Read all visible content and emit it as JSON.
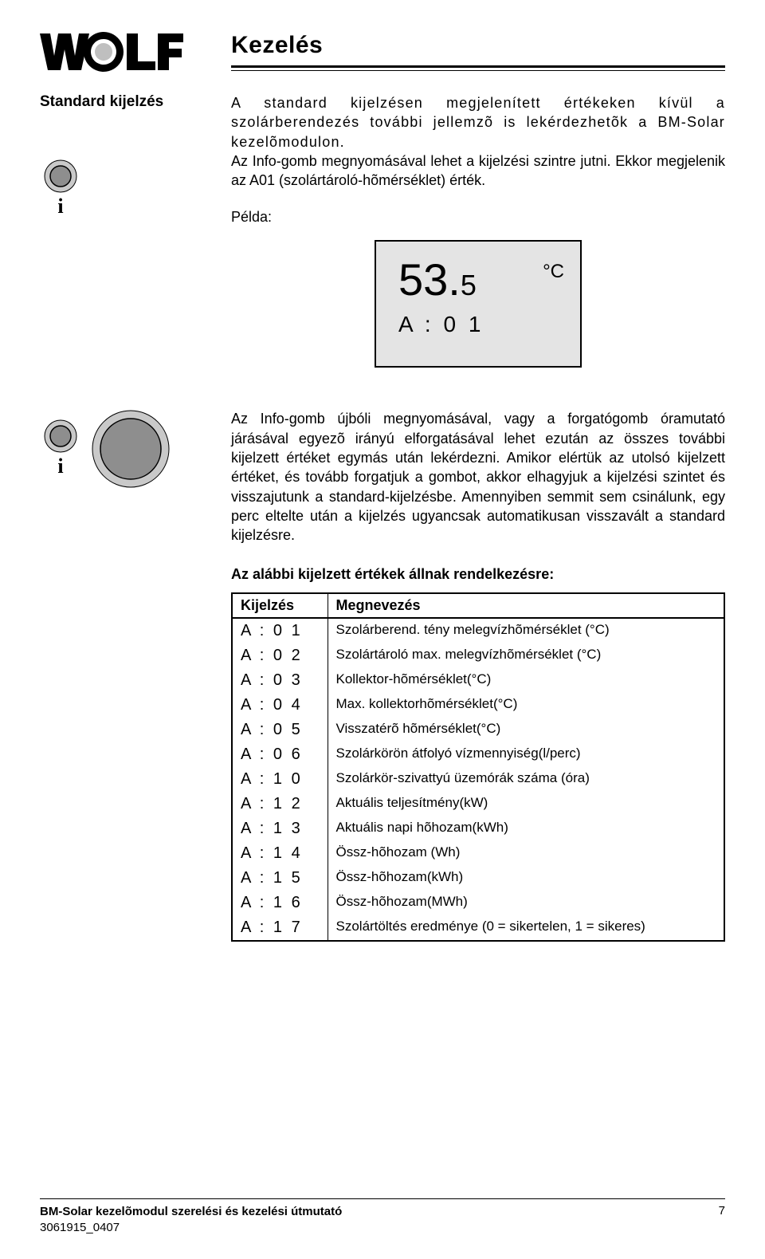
{
  "header": {
    "title": "Kezelés"
  },
  "section1": {
    "subhead": "Standard kijelzés",
    "para1": "A standard kijelzésen megjelenített értékeken kívül a szolárberendezés további jellemzõ is lekérdezhetõk a BM-Solar kezelõmodulon.",
    "para2": "Az Info-gomb megnyomásával lehet a kijelzési szintre jutni. Ekkor megjelenik az A01 (szolártároló-hõmérséklet) érték.",
    "example_label": "Példa:"
  },
  "lcd": {
    "int": "53.",
    "dec": "5",
    "unit": "°C",
    "sub": "A : 0 1"
  },
  "section2": {
    "para": "Az Info-gomb újbóli megnyomásával, vagy a forgatógomb óramutató járásával egyezõ irányú elforgatásával lehet ezután az összes további kijelzett értéket egymás után lekérdezni. Amikor elértük az utolsó kijelzett értéket, és tovább forgatjuk a gombot, akkor elhagyjuk a kijelzési szintet és visszajutunk a standard-kijelzésbe. Amennyiben semmit sem csinálunk, egy perc eltelte után a kijelzés ugyancsak automatikusan visszavált a standard kijelzésre."
  },
  "table": {
    "caption": "Az alábbi kijelzett értékek állnak rendelkezésre:",
    "head_code": "Kijelzés",
    "head_desc": "Megnevezés",
    "rows": [
      {
        "code": "A : 0 1",
        "desc": "Szolárberend. tény melegvízhõmérséklet (°C)"
      },
      {
        "code": "A : 0 2",
        "desc": "Szolártároló max. melegvízhõmérséklet (°C)"
      },
      {
        "code": "A : 0 3",
        "desc": "Kollektor-hõmérséklet(°C)"
      },
      {
        "code": "A : 0 4",
        "desc": "Max. kollektorhõmérséklet(°C)"
      },
      {
        "code": "A : 0 5",
        "desc": "Visszatérõ hõmérséklet(°C)"
      },
      {
        "code": "A : 0 6",
        "desc": "Szolárkörön átfolyó vízmennyiség(l/perc)"
      },
      {
        "code": "A : 1 0",
        "desc": "Szolárkör-szivattyú üzemórák száma (óra)"
      },
      {
        "code": "A : 1 2",
        "desc": "Aktuális teljesítmény(kW)"
      },
      {
        "code": "A : 1 3",
        "desc": "Aktuális napi hõhozam(kWh)"
      },
      {
        "code": "A : 1 4",
        "desc": "Össz-hõhozam (Wh)"
      },
      {
        "code": "A : 1 5",
        "desc": "Össz-hõhozam(kWh)"
      },
      {
        "code": "A : 1 6",
        "desc": "Össz-hõhozam(MWh)"
      },
      {
        "code": "A : 1 7",
        "desc": "Szolártöltés eredménye (0 = sikertelen, 1 = sikeres)"
      }
    ]
  },
  "footer": {
    "line1": "BM-Solar kezelõmodul szerelési és kezelési útmutató",
    "line2": "3061915_0407",
    "page_no": "7"
  },
  "colors": {
    "lcd_bg": "#e4e4e4"
  }
}
